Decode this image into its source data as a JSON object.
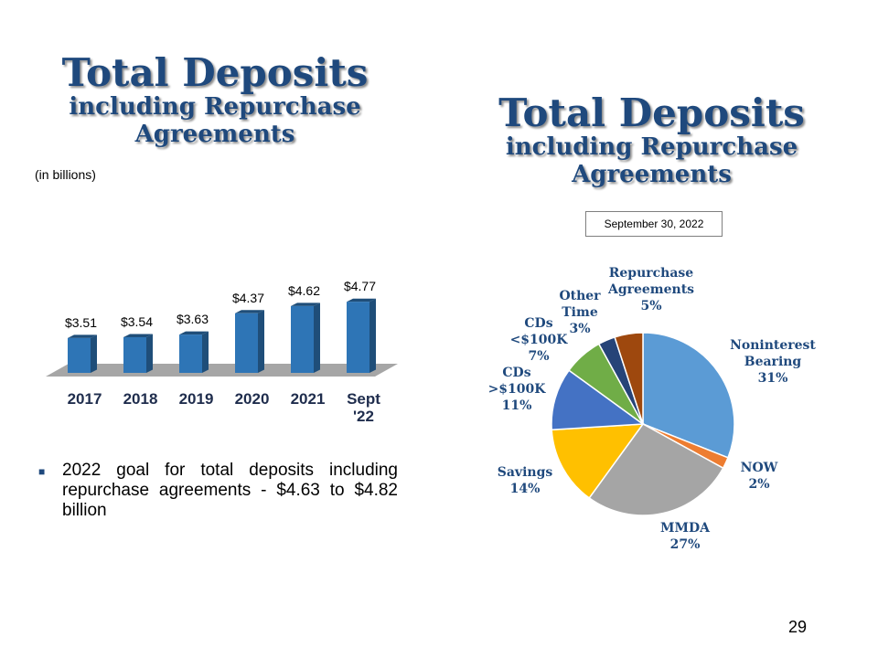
{
  "left_title": {
    "main": "Total Deposits",
    "sub": "including Repurchase Agreements"
  },
  "right_title": {
    "main": "Total Deposits",
    "sub": "including Repurchase Agreements"
  },
  "units_note": "(in billions)",
  "bullet_text": "2022 goal for total deposits including repurchase agreements - $4.63 to $4.82 billion",
  "date_label": "September 30, 2022",
  "page_number": "29",
  "chart_data": [
    {
      "type": "bar",
      "categories": [
        "2017",
        "2018",
        "2019",
        "2020",
        "2021",
        "Sept '22"
      ],
      "values": [
        3.51,
        3.54,
        3.63,
        4.37,
        4.62,
        4.77
      ],
      "value_labels": [
        "$3.51",
        "$3.54",
        "$3.63",
        "$4.37",
        "$4.62",
        "$4.77"
      ],
      "title": "Total Deposits",
      "xlabel": "",
      "ylabel": "",
      "grid": false,
      "colors": {
        "bar": "#2e75b6",
        "bar_side": "#1f4e79",
        "bar_top": "#1f4e79",
        "floor": "#a6a6a6"
      }
    },
    {
      "type": "pie",
      "title": "Total Deposits",
      "slices": [
        {
          "label": "Noninterest Bearing",
          "value": 31,
          "display": "31%",
          "color": "#5b9bd5"
        },
        {
          "label": "NOW",
          "value": 2,
          "display": "2%",
          "color": "#ed7d31"
        },
        {
          "label": "MMDA",
          "value": 27,
          "display": "27%",
          "color": "#a5a5a5"
        },
        {
          "label": "Savings",
          "value": 14,
          "display": "14%",
          "color": "#ffc000"
        },
        {
          "label": "CDs >$100K",
          "value": 11,
          "display": "11%",
          "color": "#4472c4"
        },
        {
          "label": "CDs <$100K",
          "value": 7,
          "display": "7%",
          "color": "#70ad47"
        },
        {
          "label": "Other Time",
          "value": 3,
          "display": "3%",
          "color": "#264478"
        },
        {
          "label": "Repurchase Agreements",
          "value": 5,
          "display": "5%",
          "color": "#9e480e"
        }
      ]
    }
  ]
}
